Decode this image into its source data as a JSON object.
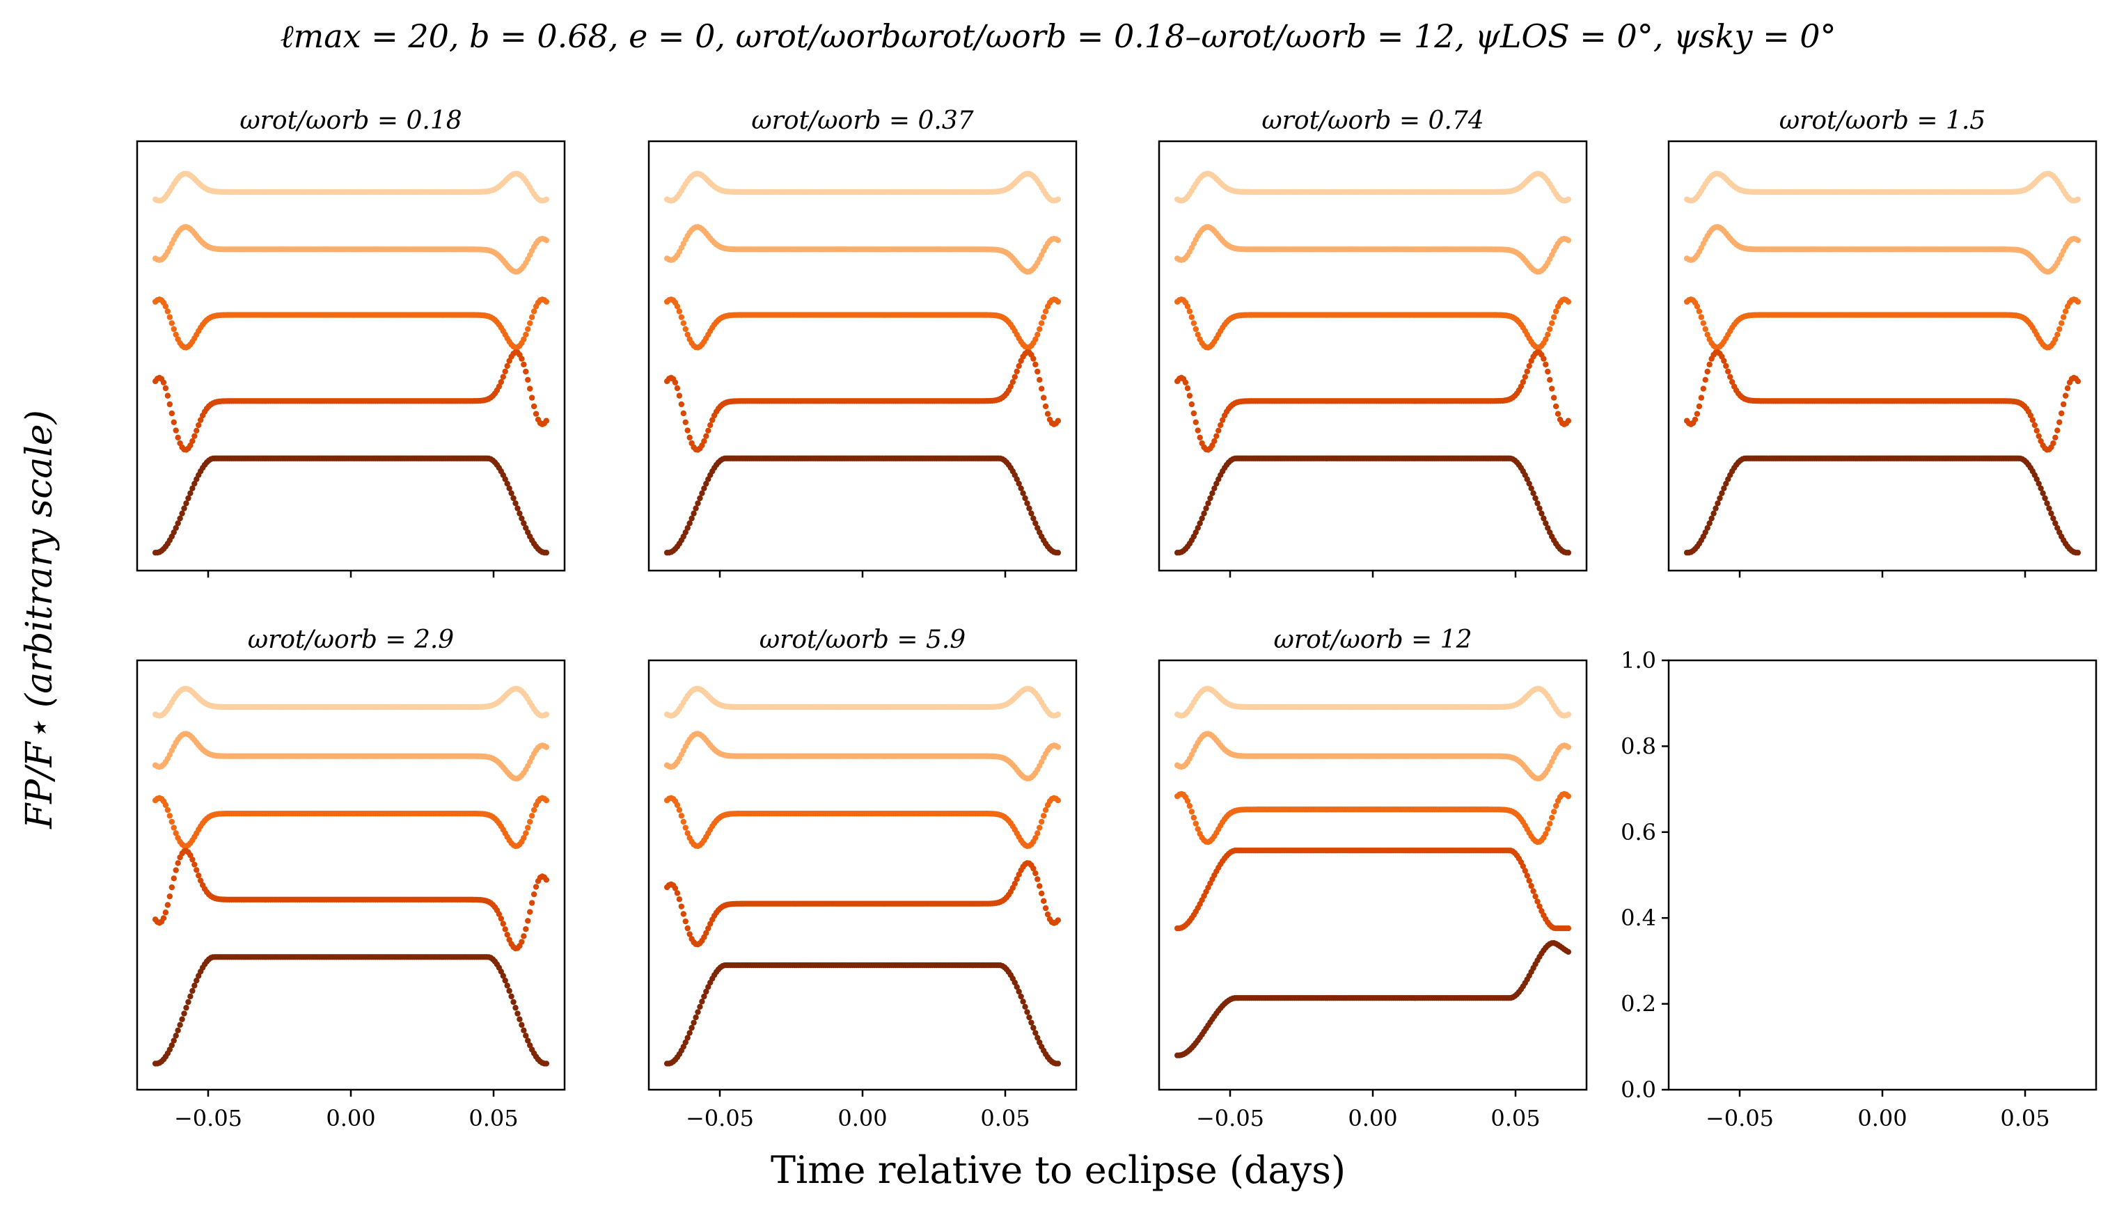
{
  "figure": {
    "title": "ℓmax = 20, b = 0.68, e = 0, ωrot/ωorbωrot/ωorb = 0.18–ωrot/ωorb = 12, ψLOS = 0°, ψsky = 0°",
    "xlabel": "Time relative to eclipse (days)",
    "ylabel": "FP/F⋆ (arbitrary scale)",
    "curve_colors": [
      "#fdd0a2",
      "#fdae6b",
      "#f16913",
      "#d94801",
      "#7f2704"
    ]
  },
  "chart_data": [
    {
      "type": "scatter",
      "title": "ωrot/ωorb = 0.18",
      "x_range": [
        -0.07,
        0.07
      ],
      "xticks": [
        "-0.05",
        "0.00",
        "0.05"
      ],
      "show_tick_labels": false,
      "curves": [
        {
          "kind": "wave",
          "offset": 0.9,
          "amp": 0.045,
          "lead_sign": 1,
          "trail_sign": 1
        },
        {
          "kind": "wave",
          "offset": 0.76,
          "amp": 0.055,
          "lead_sign": 1,
          "trail_sign": -1
        },
        {
          "kind": "wave",
          "offset": 0.6,
          "amp": 0.08,
          "lead_sign": -1,
          "trail_sign": -1
        },
        {
          "kind": "wave",
          "offset": 0.39,
          "amp": 0.12,
          "lead_sign": -1,
          "trail_sign": 1
        },
        {
          "kind": "eclipse",
          "top": 0.25,
          "bottom": 0.02
        }
      ]
    },
    {
      "type": "scatter",
      "title": "ωrot/ωorb = 0.37",
      "x_range": [
        -0.07,
        0.07
      ],
      "xticks": [
        "-0.05",
        "0.00",
        "0.05"
      ],
      "show_tick_labels": false,
      "curves": [
        {
          "kind": "wave",
          "offset": 0.9,
          "amp": 0.045,
          "lead_sign": 1,
          "trail_sign": 1
        },
        {
          "kind": "wave",
          "offset": 0.76,
          "amp": 0.055,
          "lead_sign": 1,
          "trail_sign": -1
        },
        {
          "kind": "wave",
          "offset": 0.6,
          "amp": 0.08,
          "lead_sign": -1,
          "trail_sign": -1
        },
        {
          "kind": "wave",
          "offset": 0.39,
          "amp": 0.12,
          "lead_sign": -1,
          "trail_sign": 1
        },
        {
          "kind": "eclipse",
          "top": 0.25,
          "bottom": 0.02
        }
      ]
    },
    {
      "type": "scatter",
      "title": "ωrot/ωorb = 0.74",
      "x_range": [
        -0.07,
        0.07
      ],
      "xticks": [
        "-0.05",
        "0.00",
        "0.05"
      ],
      "show_tick_labels": false,
      "curves": [
        {
          "kind": "wave",
          "offset": 0.9,
          "amp": 0.045,
          "lead_sign": 1,
          "trail_sign": 1
        },
        {
          "kind": "wave",
          "offset": 0.76,
          "amp": 0.055,
          "lead_sign": 1,
          "trail_sign": -1
        },
        {
          "kind": "wave",
          "offset": 0.6,
          "amp": 0.08,
          "lead_sign": -1,
          "trail_sign": -1
        },
        {
          "kind": "wave",
          "offset": 0.39,
          "amp": 0.12,
          "lead_sign": -1,
          "trail_sign": 1
        },
        {
          "kind": "eclipse",
          "top": 0.25,
          "bottom": 0.02
        }
      ]
    },
    {
      "type": "scatter",
      "title": "ωrot/ωorb = 1.5",
      "x_range": [
        -0.07,
        0.07
      ],
      "xticks": [
        "-0.05",
        "0.00",
        "0.05"
      ],
      "show_tick_labels": false,
      "curves": [
        {
          "kind": "wave",
          "offset": 0.9,
          "amp": 0.045,
          "lead_sign": 1,
          "trail_sign": 1
        },
        {
          "kind": "wave",
          "offset": 0.76,
          "amp": 0.055,
          "lead_sign": 1,
          "trail_sign": -1
        },
        {
          "kind": "wave",
          "offset": 0.6,
          "amp": 0.08,
          "lead_sign": -1,
          "trail_sign": -1
        },
        {
          "kind": "wave",
          "offset": 0.39,
          "amp": 0.12,
          "lead_sign": 1,
          "trail_sign": -1
        },
        {
          "kind": "eclipse",
          "top": 0.25,
          "bottom": 0.02
        }
      ]
    },
    {
      "type": "scatter",
      "title": "ωrot/ωorb = 2.9",
      "x_range": [
        -0.07,
        0.07
      ],
      "xticks": [
        "-0.05",
        "0.00",
        "0.05"
      ],
      "show_tick_labels": true,
      "curves": [
        {
          "kind": "wave",
          "offset": 0.91,
          "amp": 0.045,
          "lead_sign": 1,
          "trail_sign": 1
        },
        {
          "kind": "wave",
          "offset": 0.79,
          "amp": 0.055,
          "lead_sign": 1,
          "trail_sign": -1
        },
        {
          "kind": "wave",
          "offset": 0.65,
          "amp": 0.08,
          "lead_sign": -1,
          "trail_sign": -1
        },
        {
          "kind": "wave",
          "offset": 0.44,
          "amp": 0.12,
          "lead_sign": 1,
          "trail_sign": -1
        },
        {
          "kind": "eclipse",
          "top": 0.3,
          "bottom": 0.04
        }
      ]
    },
    {
      "type": "scatter",
      "title": "ωrot/ωorb = 5.9",
      "x_range": [
        -0.07,
        0.07
      ],
      "xticks": [
        "-0.05",
        "0.00",
        "0.05"
      ],
      "show_tick_labels": true,
      "curves": [
        {
          "kind": "wave",
          "offset": 0.91,
          "amp": 0.045,
          "lead_sign": 1,
          "trail_sign": 1
        },
        {
          "kind": "wave",
          "offset": 0.79,
          "amp": 0.055,
          "lead_sign": 1,
          "trail_sign": -1
        },
        {
          "kind": "wave",
          "offset": 0.65,
          "amp": 0.08,
          "lead_sign": -1,
          "trail_sign": -1
        },
        {
          "kind": "wave",
          "offset": 0.43,
          "amp": 0.1,
          "lead_sign": -1,
          "trail_sign": 1
        },
        {
          "kind": "eclipse",
          "top": 0.28,
          "bottom": 0.04
        }
      ]
    },
    {
      "type": "scatter",
      "title": "ωrot/ωorb = 12",
      "x_range": [
        -0.07,
        0.07
      ],
      "xticks": [
        "-0.05",
        "0.00",
        "0.05"
      ],
      "show_tick_labels": true,
      "curves": [
        {
          "kind": "wave",
          "offset": 0.91,
          "amp": 0.045,
          "lead_sign": 1,
          "trail_sign": 1
        },
        {
          "kind": "wave",
          "offset": 0.79,
          "amp": 0.055,
          "lead_sign": 1,
          "trail_sign": -1
        },
        {
          "kind": "wave",
          "offset": 0.66,
          "amp": 0.08,
          "lead_sign": -1,
          "trail_sign": -1
        },
        {
          "kind": "ramp",
          "top": 0.56,
          "start": 0.37,
          "end": 0.37
        },
        {
          "kind": "ramp",
          "top": 0.2,
          "start": 0.06,
          "end": 0.34,
          "bump": true
        }
      ]
    },
    {
      "type": "scatter",
      "title": "",
      "empty": true,
      "x_range": [
        -0.07,
        0.07
      ],
      "ylim": [
        0.0,
        1.0
      ],
      "xticks": [
        "-0.05",
        "0.00",
        "0.05"
      ],
      "yticks": [
        "0.0",
        "0.2",
        "0.4",
        "0.6",
        "0.8",
        "1.0"
      ],
      "show_tick_labels": true,
      "curves": []
    }
  ]
}
